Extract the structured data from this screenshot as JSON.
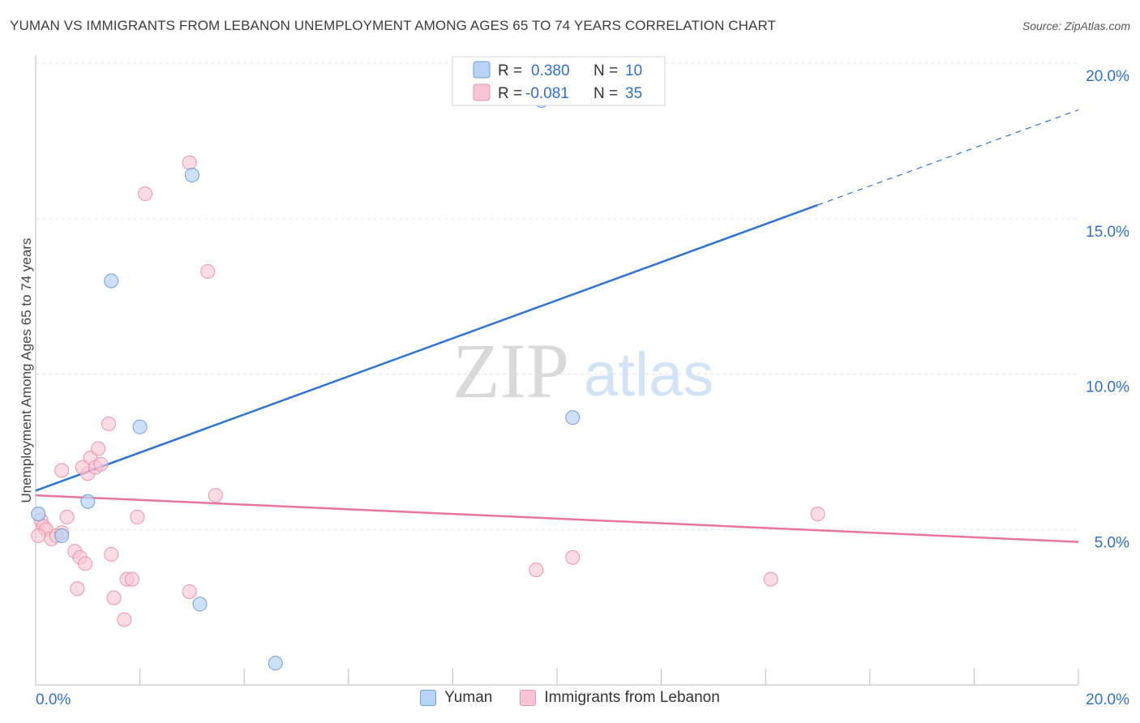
{
  "title": "YUMAN VS IMMIGRANTS FROM LEBANON UNEMPLOYMENT AMONG AGES 65 TO 74 YEARS CORRELATION CHART",
  "source": "Source: ZipAtlas.com",
  "watermark": {
    "zip": "ZIP",
    "atlas": "atlas"
  },
  "colors": {
    "yuman_fill": "#b8d3f5",
    "yuman_stroke": "#6d9fde",
    "yuman_line": "#2f74d0",
    "lebanon_fill": "#f8c4d3",
    "lebanon_stroke": "#ec93ad",
    "lebanon_line": "#e8759a",
    "value_text": "#2f6fd0",
    "grid": "#e2e2e2"
  },
  "legend_box": {
    "rows": [
      {
        "r_label": "R =",
        "r_value": "0.380",
        "n_label": "N =",
        "n_value": "10"
      },
      {
        "r_label": "R =",
        "r_value": "-0.081",
        "n_label": "N =",
        "n_value": "35"
      }
    ]
  },
  "chart_data": {
    "type": "scatter",
    "title": "YUMAN VS IMMIGRANTS FROM LEBANON UNEMPLOYMENT AMONG AGES 65 TO 74 YEARS CORRELATION CHART",
    "xlabel": "",
    "ylabel": "Unemployment Among Ages 65 to 74 years",
    "xlim": [
      0,
      20
    ],
    "ylim": [
      0,
      20
    ],
    "x_tick_labels": [
      {
        "value": 0,
        "label": "0.0%"
      },
      {
        "value": 20,
        "label": "20.0%"
      }
    ],
    "y_tick_labels": [
      {
        "value": 5,
        "label": "5.0%"
      },
      {
        "value": 10,
        "label": "10.0%"
      },
      {
        "value": 15,
        "label": "15.0%"
      },
      {
        "value": 20,
        "label": "20.0%"
      }
    ],
    "grid": true,
    "legend_position": "bottom-center",
    "series": [
      {
        "name": "Yuman",
        "r": 0.38,
        "n": 10,
        "points": [
          [
            0.05,
            5.5
          ],
          [
            0.5,
            4.8
          ],
          [
            1.0,
            5.9
          ],
          [
            1.45,
            13.0
          ],
          [
            2.0,
            8.3
          ],
          [
            3.0,
            16.4
          ],
          [
            3.15,
            2.6
          ],
          [
            4.6,
            0.7
          ],
          [
            9.7,
            18.8
          ],
          [
            10.3,
            8.6
          ]
        ],
        "trend": {
          "x0": 0,
          "y0": 6.25,
          "x1": 20,
          "y1": 18.5,
          "solid_until_x": 15
        }
      },
      {
        "name": "Immigrants from Lebanon",
        "r": -0.081,
        "n": 35,
        "points": [
          [
            0.1,
            5.3
          ],
          [
            0.15,
            5.1
          ],
          [
            0.2,
            5.0
          ],
          [
            0.3,
            4.7
          ],
          [
            0.4,
            4.8
          ],
          [
            0.5,
            4.9
          ],
          [
            0.6,
            5.4
          ],
          [
            0.75,
            4.3
          ],
          [
            0.8,
            3.1
          ],
          [
            0.85,
            4.1
          ],
          [
            0.95,
            3.9
          ],
          [
            1.0,
            6.8
          ],
          [
            1.05,
            7.3
          ],
          [
            1.15,
            7.0
          ],
          [
            1.2,
            7.6
          ],
          [
            1.25,
            7.1
          ],
          [
            1.4,
            8.4
          ],
          [
            1.45,
            4.2
          ],
          [
            1.5,
            2.8
          ],
          [
            1.7,
            2.1
          ],
          [
            1.75,
            3.4
          ],
          [
            1.85,
            3.4
          ],
          [
            1.95,
            5.4
          ],
          [
            2.1,
            15.8
          ],
          [
            2.95,
            16.8
          ],
          [
            2.95,
            3.0
          ],
          [
            3.3,
            13.3
          ],
          [
            3.45,
            6.1
          ],
          [
            9.6,
            3.7
          ],
          [
            10.3,
            4.1
          ],
          [
            14.1,
            3.4
          ],
          [
            15.0,
            5.5
          ],
          [
            0.05,
            4.8
          ],
          [
            0.5,
            6.9
          ],
          [
            0.9,
            7.0
          ]
        ],
        "trend": {
          "x0": 0,
          "y0": 6.1,
          "x1": 20,
          "y1": 4.6
        }
      }
    ]
  }
}
